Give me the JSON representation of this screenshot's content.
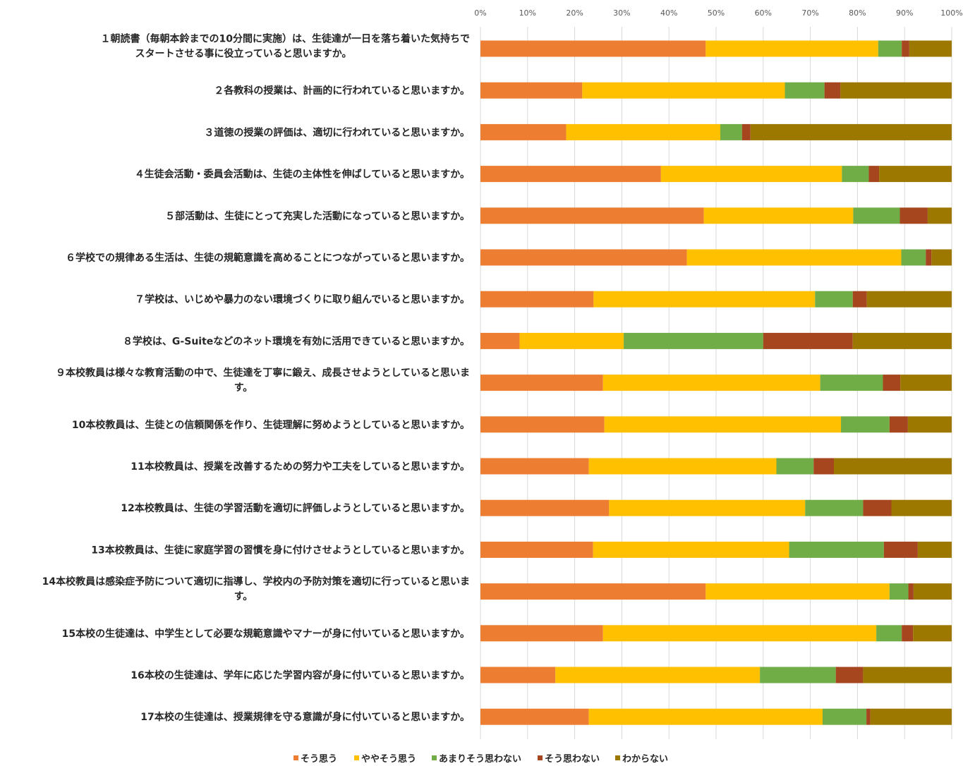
{
  "chart_data": {
    "type": "bar",
    "orientation": "horizontal",
    "stacked": "percent",
    "xlim": [
      0,
      100
    ],
    "x_ticks": [
      "0%",
      "10%",
      "20%",
      "30%",
      "40%",
      "50%",
      "60%",
      "70%",
      "80%",
      "90%",
      "100%"
    ],
    "grid": true,
    "legend_position": "bottom",
    "categories": [
      [
        "１朝読書（毎朝本鈴までの10分間に実施）は、生徒達が一日を落ち着いた気持ちで",
        "スタートさせる事に役立っていると思いますか。"
      ],
      [
        "２各教科の授業は、計画的に行われていると思いますか。"
      ],
      [
        "３道徳の授業の評価は、適切に行われていると思いますか。"
      ],
      [
        "４生徒会活動・委員会活動は、生徒の主体性を伸ばしていると思いますか。"
      ],
      [
        "５部活動は、生徒にとって充実した活動になっていると思いますか。"
      ],
      [
        "６学校での規律ある生活は、生徒の規範意識を高めることにつながっていると思いますか。"
      ],
      [
        "７学校は、いじめや暴力のない環境づくりに取り組んでいると思いますか。"
      ],
      [
        "８学校は、G-Suiteなどのネット環境を有効に活用できていると思いますか。"
      ],
      [
        "９本校教員は様々な教育活動の中で、生徒達を丁寧に鍛え、成長させようとしていると思いま",
        "す。"
      ],
      [
        "10本校教員は、生徒との信頼関係を作り、生徒理解に努めようとしていると思いますか。"
      ],
      [
        "11本校教員は、授業を改善するための努力や工夫をしていると思いますか。"
      ],
      [
        "12本校教員は、生徒の学習活動を適切に評価しようとしていると思いますか。"
      ],
      [
        "13本校教員は、生徒に家庭学習の習慣を身に付けさせようとしていると思いますか。"
      ],
      [
        "14本校教員は感染症予防について適切に指導し、学校内の予防対策を適切に行っていると思いま",
        "す。"
      ],
      [
        "15本校の生徒達は、中学生として必要な規範意識やマナーが身に付いていると思いますか。"
      ],
      [
        "16本校の生徒達は、学年に応じた学習内容が身に付いていると思いますか。"
      ],
      [
        "17本校の生徒達は、授業規律を守る意識が身に付いていると思いますか。"
      ]
    ],
    "series": [
      {
        "name": "そう思う",
        "color": "#ED7D31",
        "values": [
          47.8,
          21.6,
          18.2,
          38.3,
          47.4,
          43.8,
          24.0,
          8.3,
          26.0,
          26.3,
          23.0,
          27.3,
          23.9,
          47.8,
          26.0,
          15.9,
          23.0
        ]
      },
      {
        "name": "ややそう思う",
        "color": "#FFC000",
        "values": [
          36.6,
          43.0,
          32.7,
          38.4,
          31.7,
          45.5,
          47.0,
          22.1,
          46.1,
          50.2,
          39.8,
          41.6,
          41.6,
          39.0,
          58.0,
          43.4,
          49.6
        ]
      },
      {
        "name": "あまりそう思わない",
        "color": "#70AD47",
        "values": [
          5.0,
          8.4,
          4.6,
          5.7,
          9.9,
          5.2,
          8.0,
          29.6,
          13.3,
          10.3,
          7.9,
          12.3,
          20.1,
          4.0,
          5.4,
          16.1,
          9.3
        ]
      },
      {
        "name": "そう思わない",
        "color": "#A5461F",
        "values": [
          1.6,
          3.4,
          1.8,
          2.2,
          5.9,
          1.2,
          3.0,
          19.0,
          3.7,
          3.9,
          4.3,
          6.0,
          7.2,
          1.1,
          2.4,
          5.8,
          0.8
        ]
      },
      {
        "name": "わからない",
        "color": "#9C7800",
        "values": [
          9.0,
          23.6,
          42.7,
          15.4,
          5.1,
          4.3,
          18.0,
          21.0,
          10.9,
          9.3,
          25.0,
          12.8,
          7.2,
          8.1,
          8.2,
          18.8,
          17.3
        ]
      }
    ]
  }
}
